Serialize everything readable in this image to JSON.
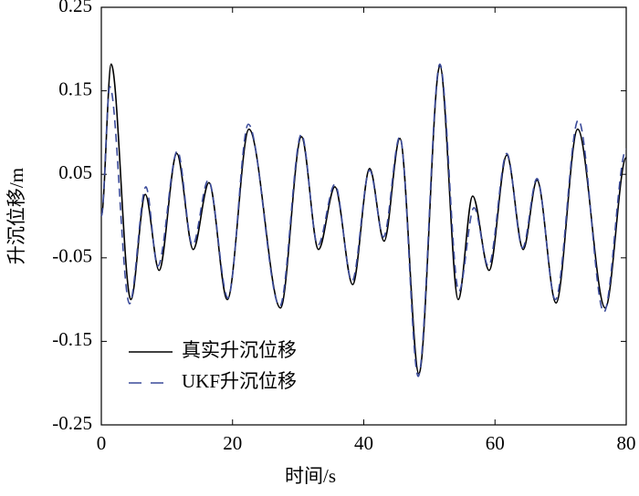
{
  "chart_data": {
    "type": "line",
    "xlabel": "时间/s",
    "ylabel": "升沉位移/m",
    "xlim": [
      0,
      80
    ],
    "xticks": [
      0,
      20,
      40,
      60,
      80
    ],
    "ylim": [
      -0.25,
      0.25
    ],
    "yticks": [
      0.25,
      0.15,
      0.05,
      -0.05,
      -0.15,
      -0.25
    ],
    "legend": "lower left",
    "series": [
      {
        "name": "真实升沉位移",
        "color": "#000000",
        "style": "solid",
        "x": [
          0,
          1.5,
          4.5,
          6.7,
          8.8,
          11.5,
          14.0,
          16.4,
          19.2,
          22.5,
          27.3,
          30.5,
          33.1,
          35.6,
          38.3,
          40.9,
          43.1,
          45.5,
          48.4,
          51.6,
          54.4,
          56.6,
          59.1,
          61.8,
          64.3,
          66.4,
          69.3,
          72.6,
          76.8,
          80
        ],
        "values": [
          0.0,
          0.182,
          -0.1,
          0.026,
          -0.065,
          0.075,
          -0.04,
          0.04,
          -0.1,
          0.104,
          -0.11,
          0.095,
          -0.04,
          0.035,
          -0.082,
          0.057,
          -0.03,
          0.093,
          -0.189,
          0.18,
          -0.1,
          0.024,
          -0.065,
          0.073,
          -0.04,
          0.043,
          -0.104,
          0.104,
          -0.11,
          0.07
        ]
      },
      {
        "name": "UKF升沉位移",
        "color": "#3a4a9a",
        "style": "dashed",
        "x": [
          0,
          1.3,
          4.3,
          6.8,
          8.6,
          11.6,
          13.9,
          16.3,
          19.3,
          22.4,
          27.2,
          30.5,
          33.0,
          35.6,
          38.2,
          40.9,
          43.0,
          45.5,
          48.3,
          51.6,
          54.5,
          56.8,
          59.0,
          61.8,
          64.2,
          66.4,
          69.2,
          72.7,
          76.6,
          80
        ],
        "values": [
          0.0,
          0.155,
          -0.105,
          0.035,
          -0.06,
          0.078,
          -0.035,
          0.043,
          -0.098,
          0.11,
          -0.108,
          0.098,
          -0.035,
          0.038,
          -0.078,
          0.055,
          -0.025,
          0.095,
          -0.192,
          0.182,
          -0.09,
          0.01,
          -0.06,
          0.075,
          -0.038,
          0.045,
          -0.1,
          0.115,
          -0.115,
          0.08
        ]
      }
    ]
  }
}
